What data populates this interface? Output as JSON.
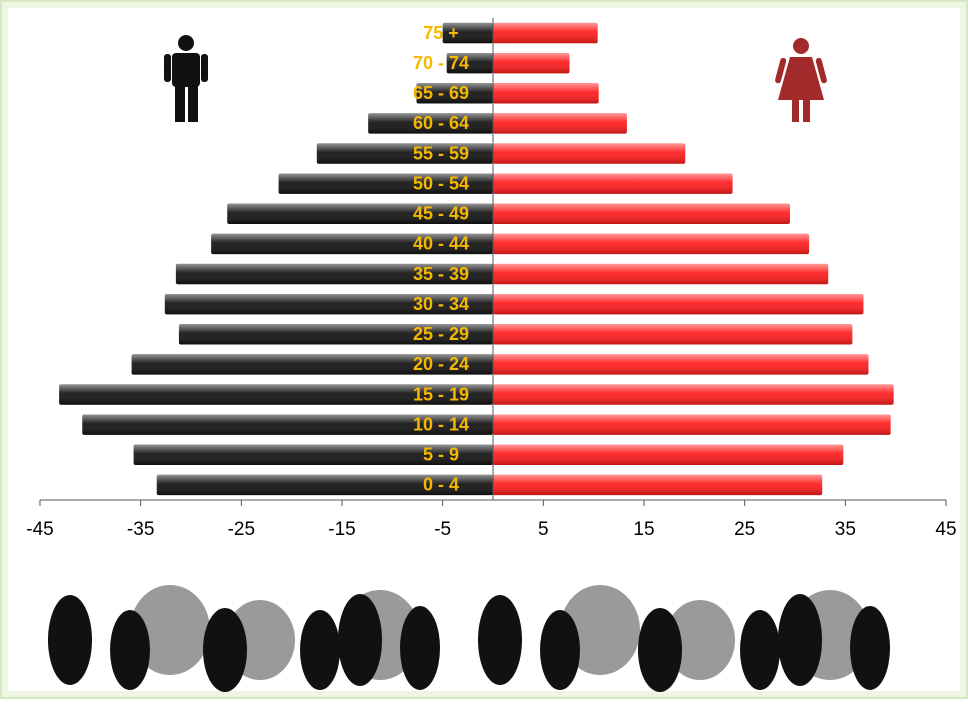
{
  "chart_data": {
    "type": "pyramid",
    "categories": [
      "0 - 4",
      "5 - 9",
      "10 - 14",
      "15 - 19",
      "20 - 24",
      "25 - 29",
      "30 - 34",
      "35 - 39",
      "40 - 44",
      "45 - 49",
      "50 - 54",
      "55 - 59",
      "60 - 64",
      "65 - 69",
      "70 - 74",
      "75 +"
    ],
    "series": [
      {
        "color": "#111111",
        "values": [
          -33.4,
          -35.7,
          -40.8,
          -43.1,
          -35.9,
          -31.2,
          -32.6,
          -31.5,
          -28.0,
          -26.4,
          -21.3,
          -17.5,
          -12.4,
          -7.6,
          -4.6,
          -5.0
        ]
      },
      {
        "color": "#ff1a1a",
        "values": [
          32.7,
          34.8,
          39.5,
          39.8,
          37.3,
          35.7,
          36.8,
          33.3,
          31.4,
          29.5,
          23.8,
          19.1,
          13.3,
          10.5,
          7.6,
          10.4
        ]
      }
    ],
    "xlim": [
      -45,
      45
    ],
    "xticks": [
      -45,
      -35,
      -25,
      -15,
      -5,
      5,
      15,
      25,
      35,
      45
    ]
  }
}
